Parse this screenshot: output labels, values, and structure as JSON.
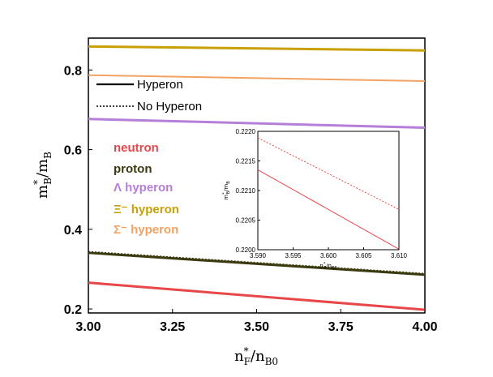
{
  "colors": {
    "neutron": "#e8474a",
    "proton": "#3b3a0e",
    "lambda": "#b57fd9",
    "xi": "#c9a005",
    "sigma": "#f4a261",
    "axis": "#000000"
  },
  "chart_data": [
    {
      "type": "line",
      "xlabel": "n",
      "xlabel_sup": "*",
      "xlabel_sub": "F",
      "xlabel_rest": "/n",
      "xlabel_rest_sub": "B0",
      "ylabel": "m",
      "ylabel_sup": "*",
      "ylabel_sub": "B",
      "ylabel_rest": "/m",
      "ylabel_rest_sub": "B",
      "xlim": [
        3.0,
        4.0
      ],
      "ylim": [
        0.19,
        0.88
      ],
      "xticks": [
        "3.00",
        "3.25",
        "3.50",
        "3.75",
        "4.00"
      ],
      "yticks": [
        "0.2",
        "0.4",
        "0.6",
        "0.8"
      ],
      "legend": {
        "placement": "top-left",
        "entries": [
          {
            "label": "Hyperon",
            "style": "solid"
          },
          {
            "label": "No Hyperon",
            "style": "dotted"
          }
        ]
      },
      "species_labels": [
        {
          "text": "neutron",
          "color_key": "neutron"
        },
        {
          "text": "proton",
          "color_key": "proton"
        },
        {
          "text": "Λ hyperon",
          "color_key": "lambda"
        },
        {
          "text": "Ξ⁻ hyperon",
          "color_key": "xi"
        },
        {
          "text": "Σ⁻ hyperon",
          "color_key": "sigma"
        }
      ],
      "series": [
        {
          "name": "Ξ⁻ hyperon",
          "color_key": "xi",
          "style": "solid",
          "width": 3,
          "x": [
            3.0,
            4.0
          ],
          "y": [
            0.859,
            0.849
          ]
        },
        {
          "name": "Σ⁻ hyperon",
          "color_key": "sigma",
          "style": "solid",
          "width": 2,
          "x": [
            3.0,
            4.0
          ],
          "y": [
            0.787,
            0.772
          ]
        },
        {
          "name": "Λ hyperon",
          "color_key": "lambda",
          "style": "solid",
          "width": 3,
          "x": [
            3.0,
            4.0
          ],
          "y": [
            0.677,
            0.655
          ]
        },
        {
          "name": "proton",
          "color_key": "proton",
          "style": "solid",
          "width": 3,
          "x": [
            3.0,
            4.0
          ],
          "y": [
            0.341,
            0.286
          ]
        },
        {
          "name": "proton",
          "color_key": "proton",
          "style": "dotted",
          "width": 1.5,
          "x": [
            3.0,
            4.0
          ],
          "y": [
            0.344,
            0.289
          ]
        },
        {
          "name": "neutron",
          "color_key": "neutron",
          "style": "solid",
          "width": 3,
          "x": [
            3.0,
            4.0
          ],
          "y": [
            0.266,
            0.198
          ]
        }
      ]
    },
    {
      "type": "line",
      "xlabel": "n",
      "xlabel_sup": "*",
      "xlabel_sub": "F",
      "xlabel_rest": "/n",
      "xlabel_rest_sub": "B0",
      "ylabel": "m",
      "ylabel_sup": "*",
      "ylabel_sub": "B",
      "ylabel_rest": "/m",
      "ylabel_rest_sub": "B",
      "xlim": [
        3.59,
        3.61
      ],
      "ylim": [
        0.22,
        0.222
      ],
      "xticks": [
        "3.590",
        "3.595",
        "3.600",
        "3.605",
        "3.610"
      ],
      "yticks": [
        "0.2200",
        "0.2205",
        "0.2210",
        "0.2215",
        "0.2220"
      ],
      "series": [
        {
          "name": "neutron",
          "color_key": "neutron",
          "style": "solid",
          "width": 1,
          "x": [
            3.59,
            3.61
          ],
          "y": [
            0.22135,
            0.22001
          ]
        },
        {
          "name": "neutron",
          "color_key": "neutron",
          "style": "dotted",
          "width": 1,
          "x": [
            3.59,
            3.61
          ],
          "y": [
            0.22189,
            0.22068
          ]
        }
      ]
    }
  ]
}
